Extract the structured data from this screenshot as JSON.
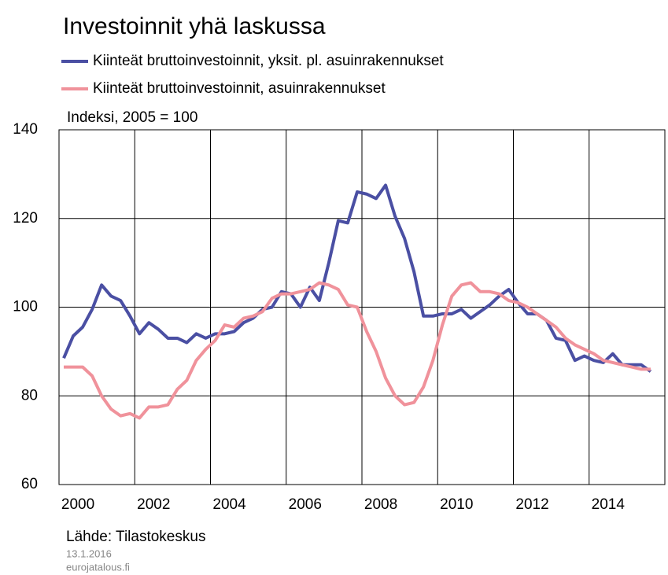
{
  "chart_data": {
    "type": "line",
    "title": "Investoinnit yhä laskussa",
    "y_label": "Indeksi, 2005 = 100",
    "source": "Lähde: Tilastokeskus",
    "date": "13.1.2016",
    "site": "eurojatalous.fi",
    "x": [
      2000.125,
      2000.375,
      2000.625,
      2000.875,
      2001.125,
      2001.375,
      2001.625,
      2001.875,
      2002.125,
      2002.375,
      2002.625,
      2002.875,
      2003.125,
      2003.375,
      2003.625,
      2003.875,
      2004.125,
      2004.375,
      2004.625,
      2004.875,
      2005.125,
      2005.375,
      2005.625,
      2005.875,
      2006.125,
      2006.375,
      2006.625,
      2006.875,
      2007.125,
      2007.375,
      2007.625,
      2007.875,
      2008.125,
      2008.375,
      2008.625,
      2008.875,
      2009.125,
      2009.375,
      2009.625,
      2009.875,
      2010.125,
      2010.375,
      2010.625,
      2010.875,
      2011.125,
      2011.375,
      2011.625,
      2011.875,
      2012.125,
      2012.375,
      2012.625,
      2012.875,
      2013.125,
      2013.375,
      2013.625,
      2013.875,
      2014.125,
      2014.375,
      2014.625,
      2014.875,
      2015.125,
      2015.375,
      2015.625
    ],
    "series": [
      {
        "name": "Kiinteät bruttoinvestoinnit, yksit. pl. asuinrakennukset",
        "color": "#4a4fa3",
        "values": [
          88.5,
          93.5,
          95.5,
          99.5,
          105,
          102.5,
          101.5,
          98,
          94,
          96.5,
          95,
          93,
          93,
          92,
          94,
          93,
          94,
          94,
          94.5,
          96.5,
          97.5,
          99.5,
          100,
          103.5,
          103,
          100,
          104.5,
          101.5,
          110,
          119.5,
          119,
          126,
          125.5,
          124.5,
          127.5,
          120.5,
          115.5,
          108,
          98,
          98,
          98.5,
          98.5,
          99.5,
          97.5,
          99,
          100.5,
          102.5,
          104,
          101,
          98.5,
          98.5,
          97,
          93,
          92.5,
          88,
          89,
          88,
          87.5,
          89.5,
          87,
          87,
          87,
          85.5
        ]
      },
      {
        "name": "Kiinteät bruttoinvestoinnit, asuinrakennukset",
        "color": "#f0929b",
        "values": [
          86.5,
          86.5,
          86.5,
          84.5,
          80,
          77,
          75.5,
          76,
          75,
          77.5,
          77.5,
          78,
          81.5,
          83.5,
          88,
          90.5,
          92.5,
          96,
          95.5,
          97.5,
          98,
          99,
          102,
          103,
          103,
          103.5,
          104,
          105.5,
          105,
          104,
          100.5,
          100,
          94.5,
          90,
          84,
          80,
          78,
          78.5,
          82,
          88,
          96,
          102.5,
          105,
          105.5,
          103.5,
          103.5,
          103,
          101.5,
          101,
          100,
          98.5,
          97,
          95.5,
          93,
          91.5,
          90.5,
          89.5,
          88,
          87.5,
          87,
          86.5,
          86,
          86
        ]
      }
    ],
    "xlim": [
      2000,
      2016
    ],
    "xticks": [
      {
        "value": 2000.5,
        "label": "2000"
      },
      {
        "value": 2002.5,
        "label": "2002"
      },
      {
        "value": 2004.5,
        "label": "2004"
      },
      {
        "value": 2006.5,
        "label": "2006"
      },
      {
        "value": 2008.5,
        "label": "2008"
      },
      {
        "value": 2010.5,
        "label": "2010"
      },
      {
        "value": 2012.5,
        "label": "2012"
      },
      {
        "value": 2014.5,
        "label": "2014"
      }
    ],
    "xgrid": [
      2002,
      2004,
      2006,
      2008,
      2010,
      2012,
      2014
    ],
    "ylim": [
      60,
      140
    ],
    "yticks": [
      60,
      80,
      100,
      120,
      140
    ],
    "grid": true
  }
}
